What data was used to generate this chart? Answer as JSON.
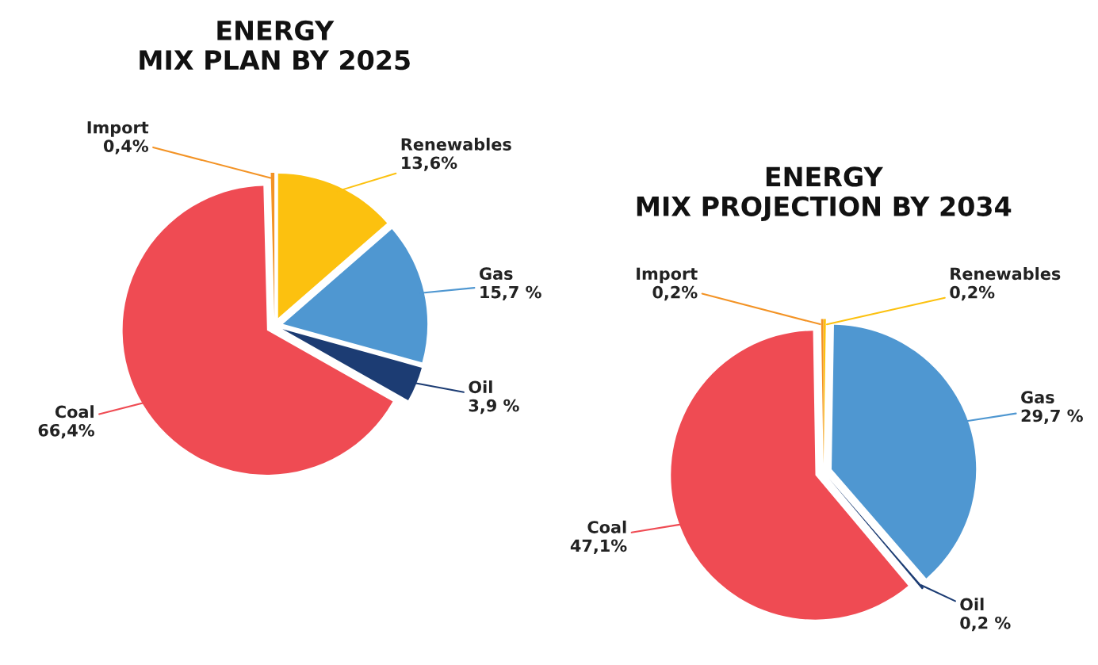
{
  "chart_data": [
    {
      "type": "pie",
      "title": "ENERGY\nMIX PLAN BY 2025",
      "categories": [
        "Renewables",
        "Gas",
        "Oil",
        "Coal",
        "Import"
      ],
      "values": [
        13.6,
        15.7,
        3.9,
        66.4,
        0.4
      ],
      "value_labels": [
        "13,6%",
        "15,7 %",
        "3,9 %",
        "66,4%",
        "0,4%"
      ],
      "colors": [
        "#fcc10f",
        "#4f97d1",
        "#1c3c73",
        "#ef4b53",
        "#f39325"
      ]
    },
    {
      "type": "pie",
      "title": "ENERGY\nMIX PROJECTION BY 2034",
      "categories": [
        "Renewables",
        "Gas",
        "Oil",
        "Coal",
        "Import"
      ],
      "values": [
        0.2,
        29.7,
        0.2,
        47.1,
        0.2
      ],
      "value_labels": [
        "0,2%",
        "29,7 %",
        "0,2 %",
        "47,1%",
        "0,2%"
      ],
      "colors": [
        "#fcc10f",
        "#4f97d1",
        "#1c3c73",
        "#ef4b53",
        "#f39325"
      ]
    }
  ]
}
